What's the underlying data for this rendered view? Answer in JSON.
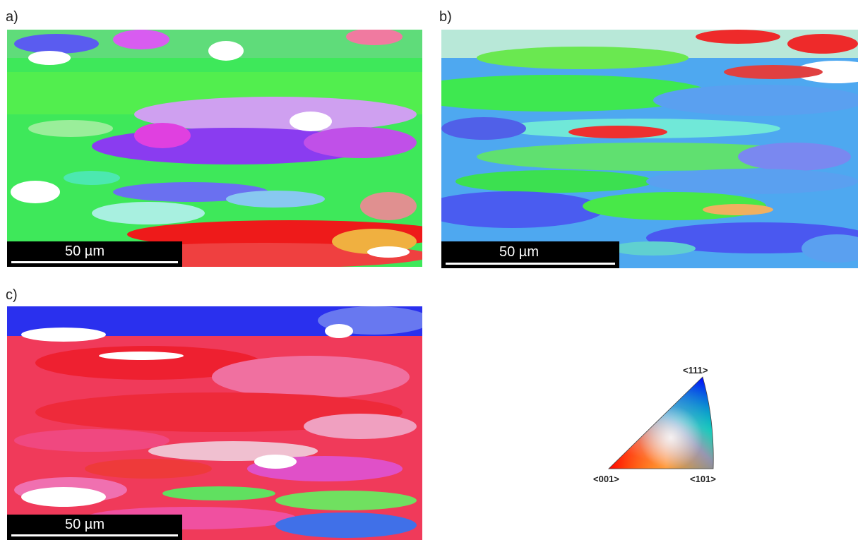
{
  "panels": [
    {
      "label": "a)",
      "scale_bar": "50 µm"
    },
    {
      "label": "b)",
      "scale_bar": "50 µm"
    },
    {
      "label": "c)",
      "scale_bar": "50 µm"
    }
  ],
  "legend": {
    "corner_top": "<111>",
    "corner_left": "<001>",
    "corner_right": "<101>",
    "colors": {
      "001": "#ff0000",
      "101": "#00ff00",
      "111": "#0000ff"
    }
  }
}
